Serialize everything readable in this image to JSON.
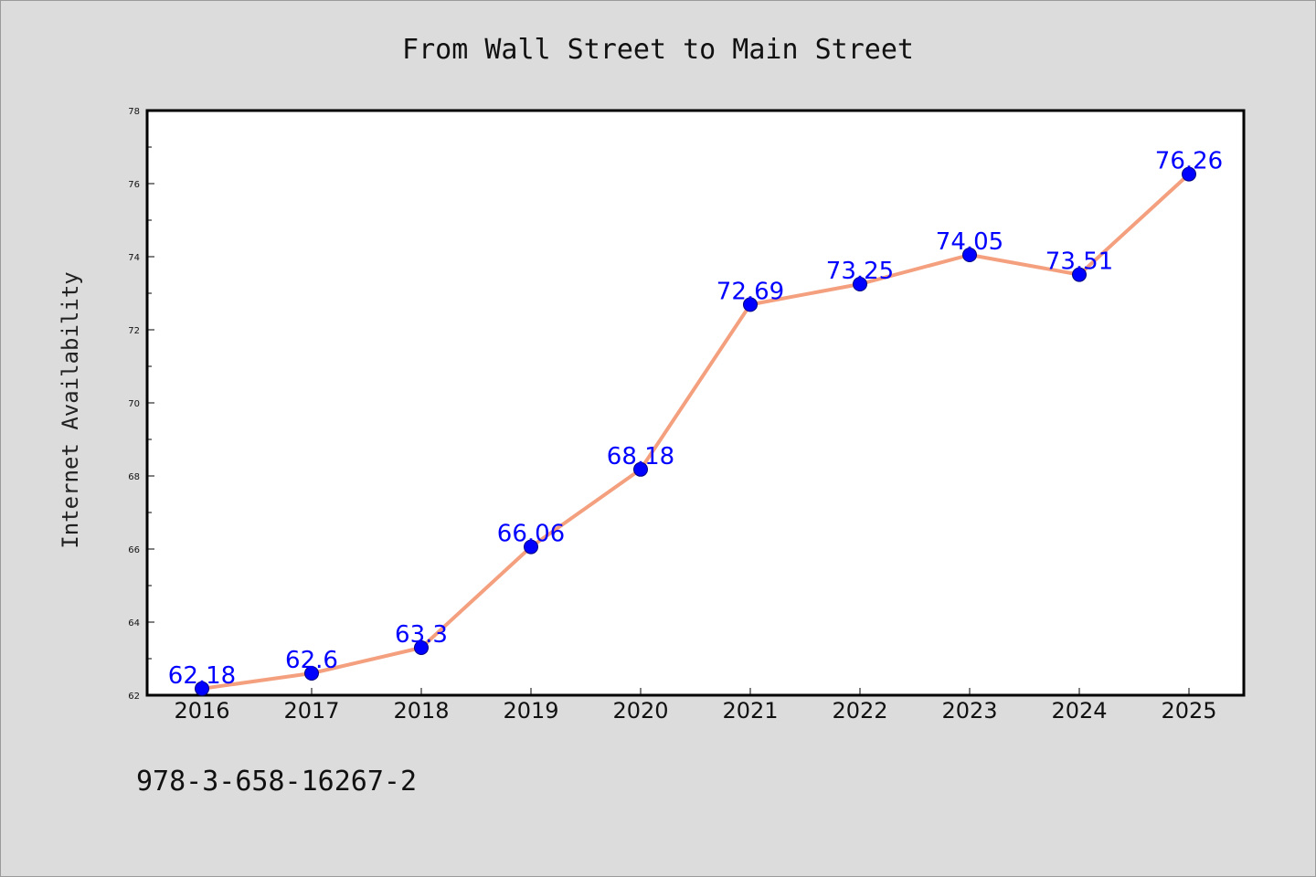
{
  "chart_data": {
    "type": "line",
    "title": "From Wall Street to Main Street",
    "xlabel": "",
    "ylabel": "Internet Availability",
    "x": [
      "2016",
      "2017",
      "2018",
      "2019",
      "2020",
      "2021",
      "2022",
      "2023",
      "2024",
      "2025"
    ],
    "series": [
      {
        "values": [
          62.18,
          62.6,
          63.3,
          66.06,
          68.18,
          72.69,
          73.25,
          74.05,
          73.51,
          76.26
        ],
        "data_labels": [
          "62.18",
          "62.6",
          "63.3",
          "66.06",
          "68.18",
          "72.69",
          "73.25",
          "74.05",
          "73.51",
          "76.26"
        ],
        "line_color": "#f4a07f",
        "marker_color": "#0000ff"
      }
    ],
    "ylim": [
      62,
      78
    ],
    "yticks": [
      "62",
      "64",
      "66",
      "68",
      "70",
      "72",
      "74",
      "76",
      "78"
    ],
    "ytick_values": [
      62,
      64,
      66,
      68,
      70,
      72,
      74,
      76,
      78
    ],
    "grid": false,
    "legend": "none"
  },
  "footnote": "978-3-658-16267-2",
  "colors": {
    "figure_background": "#dcdcdc",
    "plot_background": "#ffffff",
    "label_color": "#0000ff"
  }
}
